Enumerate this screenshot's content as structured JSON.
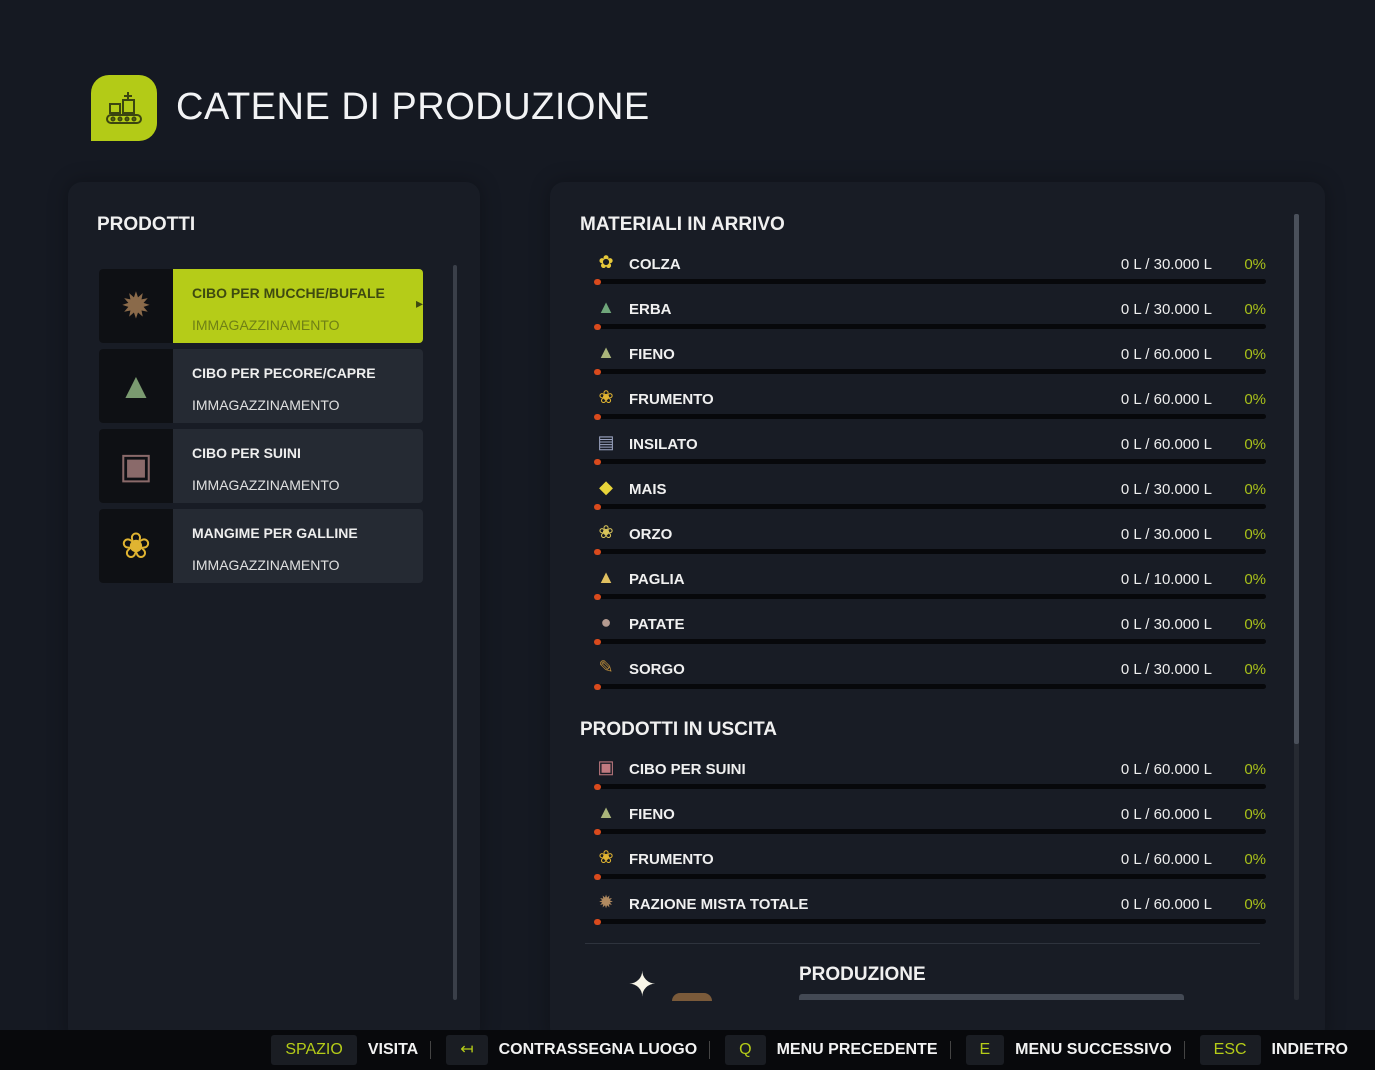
{
  "header": {
    "title": "CATENE DI PRODUZIONE",
    "icon": "factory-conveyor-icon",
    "accent": "#b5cc18"
  },
  "products": {
    "title": "PRODOTTI",
    "items": [
      {
        "name": "CIBO PER MUCCHE/BUFALE",
        "sub": "IMMAGAZZINAMENTO",
        "icon": "mixed-ration-icon",
        "selected": true
      },
      {
        "name": "CIBO PER PECORE/CAPRE",
        "sub": "IMMAGAZZINAMENTO",
        "icon": "grass-bundle-icon"
      },
      {
        "name": "CIBO PER SUINI",
        "sub": "IMMAGAZZINAMENTO",
        "icon": "pig-feed-bag-icon"
      },
      {
        "name": "MANGIME PER GALLINE",
        "sub": "IMMAGAZZINAMENTO",
        "icon": "wheat-icon"
      }
    ]
  },
  "incoming": {
    "title": "MATERIALI IN ARRIVO",
    "rows": [
      {
        "icon": "canola-icon",
        "glyph": "✿",
        "color": "#e6c83a",
        "name": "COLZA",
        "value": "0 L / 30.000 L",
        "pct": "0%"
      },
      {
        "icon": "grass-icon",
        "glyph": "▲",
        "color": "#6fa67a",
        "name": "ERBA",
        "value": "0 L / 30.000 L",
        "pct": "0%"
      },
      {
        "icon": "hay-icon",
        "glyph": "▲",
        "color": "#a9b47a",
        "name": "FIENO",
        "value": "0 L / 60.000 L",
        "pct": "0%"
      },
      {
        "icon": "wheat-icon",
        "glyph": "❀",
        "color": "#e0b431",
        "name": "FRUMENTO",
        "value": "0 L / 60.000 L",
        "pct": "0%"
      },
      {
        "icon": "silage-icon",
        "glyph": "▤",
        "color": "#9aa3c0",
        "name": "INSILATO",
        "value": "0 L / 60.000 L",
        "pct": "0%"
      },
      {
        "icon": "maize-icon",
        "glyph": "◆",
        "color": "#e8d53a",
        "name": "MAIS",
        "value": "0 L / 30.000 L",
        "pct": "0%"
      },
      {
        "icon": "barley-icon",
        "glyph": "❀",
        "color": "#d8c45a",
        "name": "ORZO",
        "value": "0 L / 30.000 L",
        "pct": "0%"
      },
      {
        "icon": "straw-icon",
        "glyph": "▲",
        "color": "#e0c060",
        "name": "PAGLIA",
        "value": "0 L / 10.000 L",
        "pct": "0%"
      },
      {
        "icon": "potato-icon",
        "glyph": "●",
        "color": "#b49a90",
        "name": "PATATE",
        "value": "0 L / 30.000 L",
        "pct": "0%"
      },
      {
        "icon": "sorghum-icon",
        "glyph": "✎",
        "color": "#b88a3a",
        "name": "SORGO",
        "value": "0 L / 30.000 L",
        "pct": "0%"
      }
    ]
  },
  "outgoing": {
    "title": "PRODOTTI IN USCITA",
    "rows": [
      {
        "icon": "pig-feed-icon",
        "glyph": "▣",
        "color": "#c07a80",
        "name": "CIBO PER SUINI",
        "value": "0 L / 60.000 L",
        "pct": "0%"
      },
      {
        "icon": "hay-icon",
        "glyph": "▲",
        "color": "#a9b47a",
        "name": "FIENO",
        "value": "0 L / 60.000 L",
        "pct": "0%"
      },
      {
        "icon": "wheat-icon",
        "glyph": "❀",
        "color": "#e0b431",
        "name": "FRUMENTO",
        "value": "0 L / 60.000 L",
        "pct": "0%"
      },
      {
        "icon": "mixed-ration-icon",
        "glyph": "✹",
        "color": "#b08a60",
        "name": "RAZIONE MISTA TOTALE",
        "value": "0 L / 60.000 L",
        "pct": "0%"
      }
    ]
  },
  "production": {
    "title": "PRODUZIONE"
  },
  "footer": [
    {
      "key": "SPAZIO",
      "label": "VISITA"
    },
    {
      "key": "↤",
      "label": "CONTRASSEGNA LUOGO"
    },
    {
      "key": "Q",
      "label": "MENU PRECEDENTE"
    },
    {
      "key": "E",
      "label": "MENU SUCCESSIVO"
    },
    {
      "key": "ESC",
      "label": "INDIETRO"
    }
  ]
}
